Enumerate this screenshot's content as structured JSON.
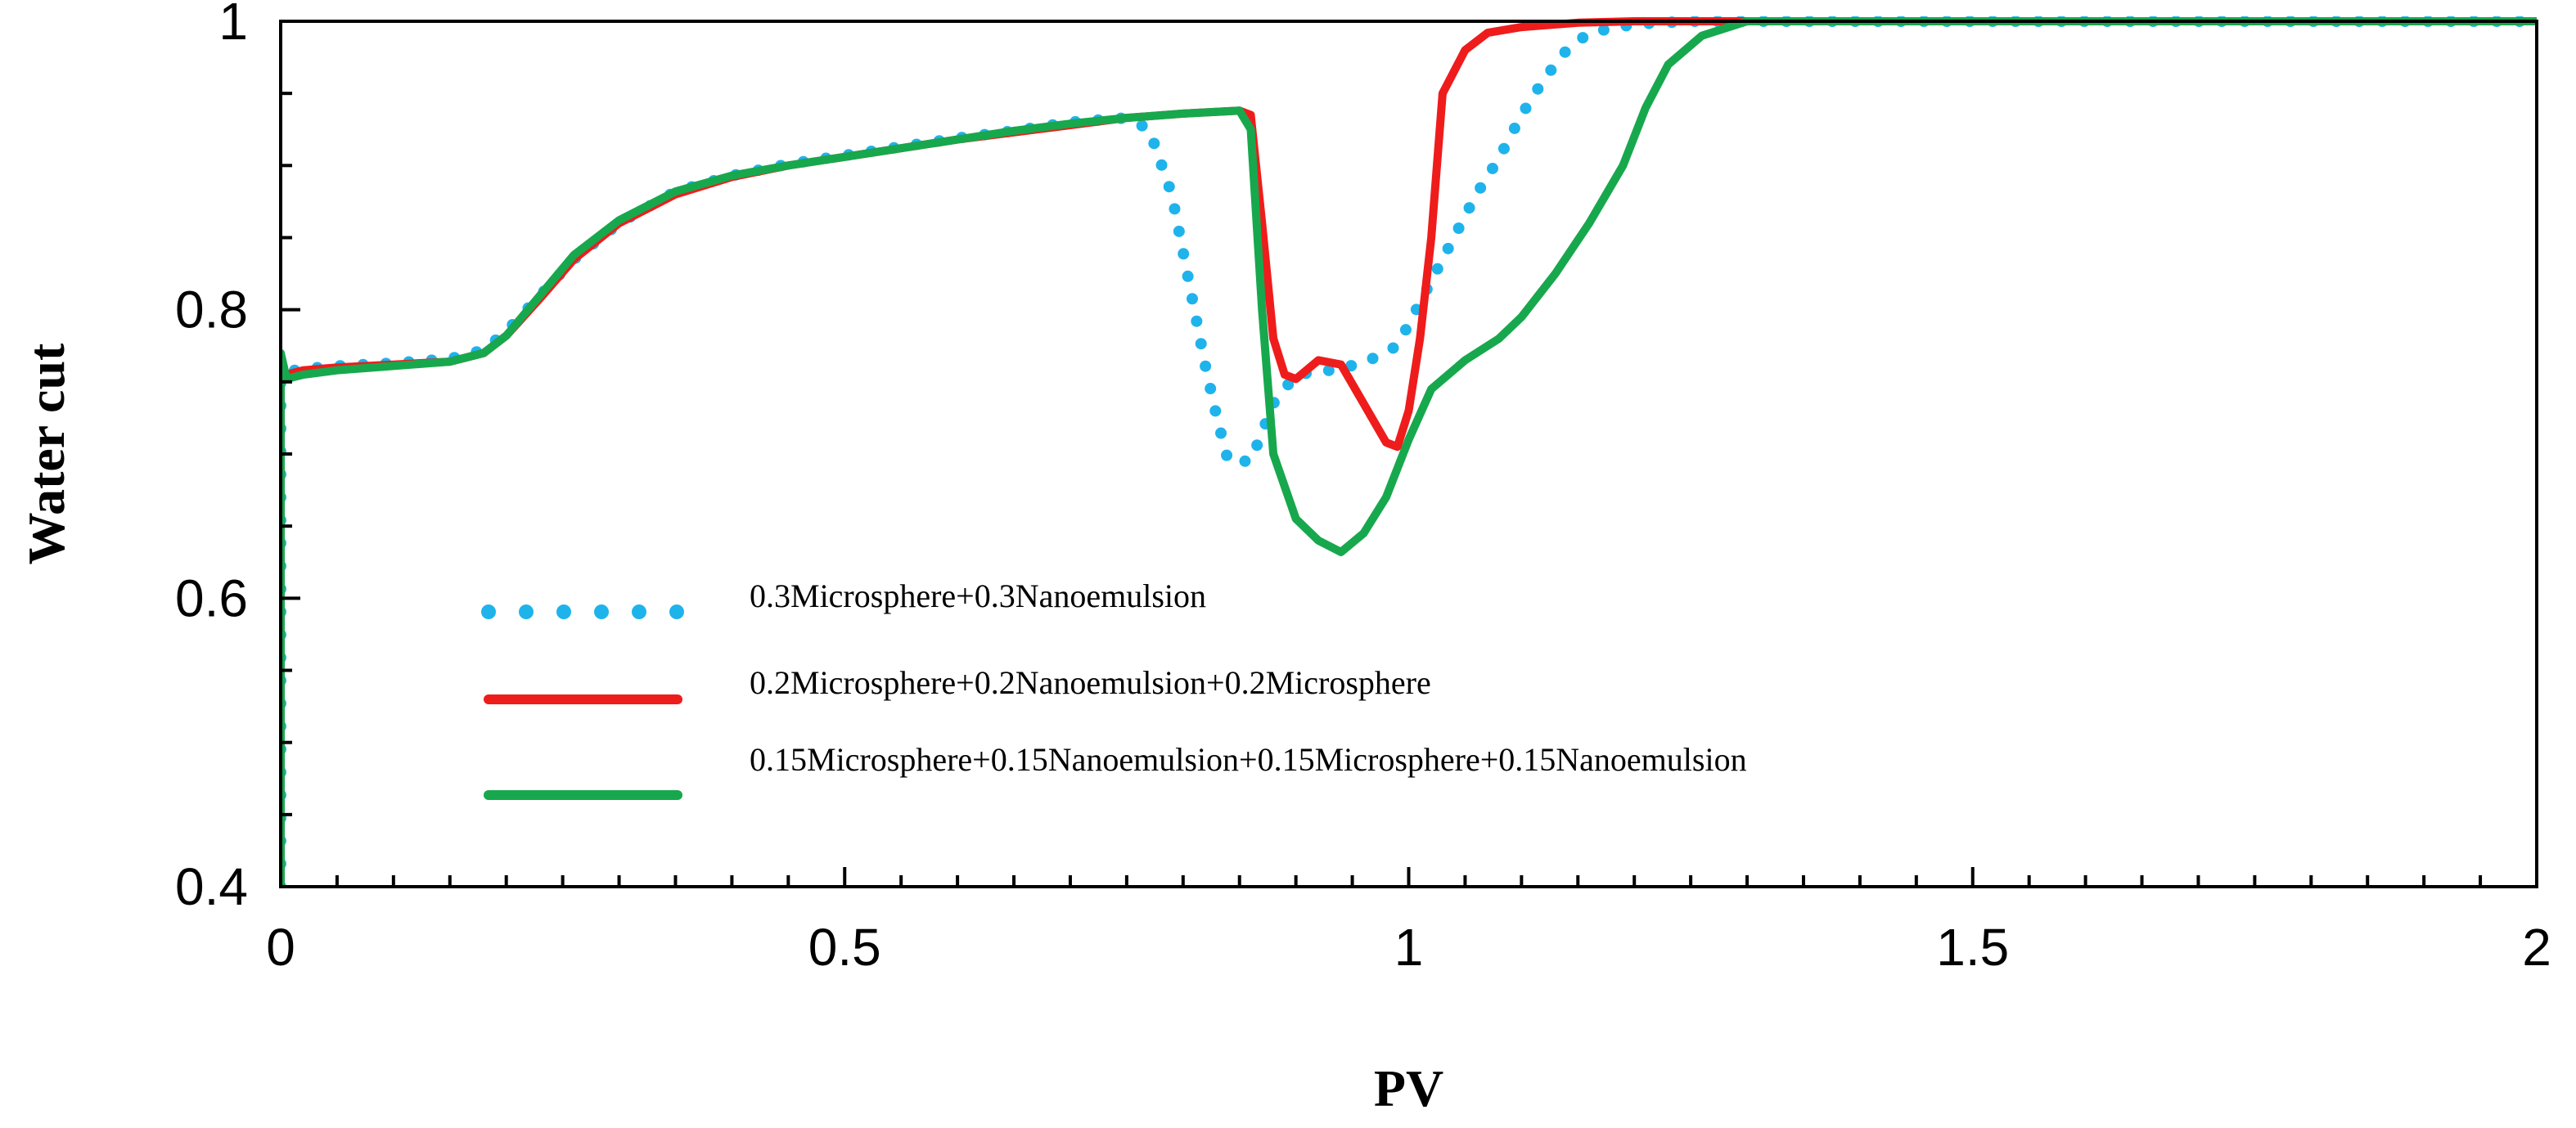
{
  "chart_data": {
    "type": "line",
    "title": "",
    "xlabel": "PV",
    "ylabel": "Water cut",
    "xlim": [
      0,
      2
    ],
    "ylim": [
      0.4,
      1.0
    ],
    "xticks": [
      0,
      0.5,
      1,
      1.5,
      2
    ],
    "xtick_labels": [
      "0",
      "0.5",
      "1",
      "1.5",
      "2"
    ],
    "yticks": [
      0.4,
      0.6,
      0.8,
      1.0
    ],
    "ytick_labels": [
      "0.4",
      "0.6",
      "0.8",
      "1"
    ],
    "x_minor_step": 0.05,
    "y_minor_step": 0.05,
    "grid": false,
    "legend_position": "center-left",
    "series": [
      {
        "name": "0.3Microsphere+0.3Nanoemulsion",
        "color": "#1fb3ec",
        "style": "dotted",
        "x": [
          0.0,
          0.0,
          0.005,
          0.02,
          0.05,
          0.1,
          0.15,
          0.18,
          0.2,
          0.23,
          0.26,
          0.3,
          0.35,
          0.4,
          0.45,
          0.5,
          0.55,
          0.6,
          0.65,
          0.7,
          0.75,
          0.77,
          0.79,
          0.8,
          0.81,
          0.82,
          0.83,
          0.84,
          0.86,
          0.88,
          0.9,
          0.93,
          0.96,
          0.99,
          1.0,
          1.02,
          1.04,
          1.06,
          1.08,
          1.1,
          1.12,
          1.14,
          1.16,
          1.2,
          1.25,
          1.3,
          1.4,
          1.5,
          1.6,
          1.7,
          1.8,
          1.9,
          2.0
        ],
        "y": [
          0.4,
          0.755,
          0.757,
          0.759,
          0.761,
          0.763,
          0.766,
          0.772,
          0.785,
          0.81,
          0.835,
          0.86,
          0.882,
          0.893,
          0.901,
          0.907,
          0.913,
          0.919,
          0.924,
          0.93,
          0.933,
          0.925,
          0.88,
          0.84,
          0.8,
          0.76,
          0.725,
          0.695,
          0.695,
          0.735,
          0.755,
          0.758,
          0.763,
          0.775,
          0.79,
          0.82,
          0.85,
          0.88,
          0.905,
          0.935,
          0.96,
          0.98,
          0.992,
          0.998,
          1.0,
          1.0,
          1.0,
          1.0,
          1.0,
          1.0,
          1.0,
          1.0,
          1.0
        ]
      },
      {
        "name": "0.2Microsphere+0.2Nanoemulsion+0.2Microsphere",
        "color": "#ef1c1c",
        "style": "solid",
        "x": [
          0.0,
          0.0,
          0.005,
          0.02,
          0.05,
          0.1,
          0.15,
          0.18,
          0.2,
          0.23,
          0.26,
          0.3,
          0.35,
          0.4,
          0.45,
          0.5,
          0.55,
          0.6,
          0.65,
          0.7,
          0.75,
          0.8,
          0.85,
          0.86,
          0.87,
          0.88,
          0.89,
          0.9,
          0.92,
          0.94,
          0.96,
          0.98,
          0.99,
          1.0,
          1.01,
          1.02,
          1.03,
          1.05,
          1.07,
          1.1,
          1.15,
          1.2,
          1.3,
          1.4,
          1.6,
          1.8,
          2.0
        ],
        "y": [
          0.4,
          0.75,
          0.755,
          0.758,
          0.76,
          0.762,
          0.764,
          0.77,
          0.782,
          0.808,
          0.835,
          0.86,
          0.88,
          0.892,
          0.9,
          0.906,
          0.912,
          0.918,
          0.923,
          0.928,
          0.933,
          0.936,
          0.938,
          0.935,
          0.86,
          0.78,
          0.755,
          0.752,
          0.765,
          0.762,
          0.735,
          0.708,
          0.705,
          0.73,
          0.78,
          0.85,
          0.95,
          0.98,
          0.992,
          0.996,
          0.999,
          1.0,
          1.0,
          1.0,
          1.0,
          1.0,
          1.0
        ]
      },
      {
        "name": "0.15Microsphere+0.15Nanoemulsion+0.15Microsphere+0.15Nanoemulsion",
        "color": "#17a84d",
        "style": "solid",
        "x": [
          0.0,
          0.0,
          0.003,
          0.005,
          0.02,
          0.05,
          0.1,
          0.15,
          0.18,
          0.2,
          0.23,
          0.26,
          0.3,
          0.35,
          0.4,
          0.45,
          0.5,
          0.55,
          0.6,
          0.65,
          0.7,
          0.75,
          0.8,
          0.85,
          0.86,
          0.87,
          0.88,
          0.9,
          0.92,
          0.94,
          0.96,
          0.98,
          1.0,
          1.02,
          1.05,
          1.08,
          1.1,
          1.13,
          1.16,
          1.19,
          1.21,
          1.23,
          1.26,
          1.3,
          1.4,
          1.5,
          1.6,
          1.7,
          1.8,
          1.9,
          2.0
        ],
        "y": [
          0.4,
          0.77,
          0.76,
          0.752,
          0.755,
          0.758,
          0.761,
          0.764,
          0.77,
          0.782,
          0.81,
          0.838,
          0.862,
          0.882,
          0.893,
          0.9,
          0.906,
          0.912,
          0.918,
          0.924,
          0.929,
          0.933,
          0.936,
          0.938,
          0.925,
          0.8,
          0.7,
          0.655,
          0.64,
          0.632,
          0.645,
          0.67,
          0.71,
          0.745,
          0.765,
          0.78,
          0.795,
          0.825,
          0.86,
          0.9,
          0.94,
          0.97,
          0.99,
          1.0,
          1.0,
          1.0,
          1.0,
          1.0,
          1.0,
          1.0,
          1.0
        ]
      }
    ]
  }
}
